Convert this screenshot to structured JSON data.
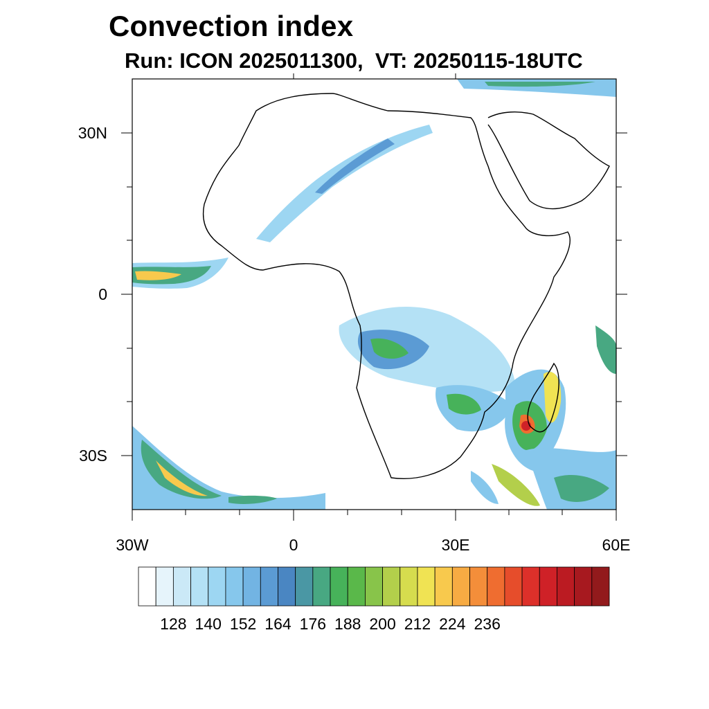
{
  "title": "Convection index",
  "subtitle": "Run: ICON 2025011300,  VT: 20250115-18UTC",
  "axes": {
    "lat_labels": [
      "30N",
      "0",
      "30S"
    ],
    "lon_labels": [
      "30W",
      "0",
      "30E",
      "60E"
    ],
    "lat_range": [
      -40,
      40
    ],
    "lon_range": [
      -30,
      60
    ]
  },
  "colorbar": {
    "labels": [
      "128",
      "140",
      "152",
      "164",
      "176",
      "188",
      "200",
      "212",
      "224",
      "236"
    ],
    "colors": [
      "#ffffff",
      "#e6f4fb",
      "#cbe9f7",
      "#b4e1f5",
      "#9dd6f2",
      "#86c7ec",
      "#72b4e3",
      "#5b9bd4",
      "#4a86c2",
      "#4a97a4",
      "#48a882",
      "#47b25a",
      "#5ab84a",
      "#88c44a",
      "#b3cf4b",
      "#d6dc4e",
      "#f0e353",
      "#f8c94d",
      "#f7ab43",
      "#f48e3a",
      "#ef6d30",
      "#e64d2b",
      "#dd302a",
      "#cf2127",
      "#bb1b22",
      "#a7191f",
      "#921a1c"
    ]
  }
}
